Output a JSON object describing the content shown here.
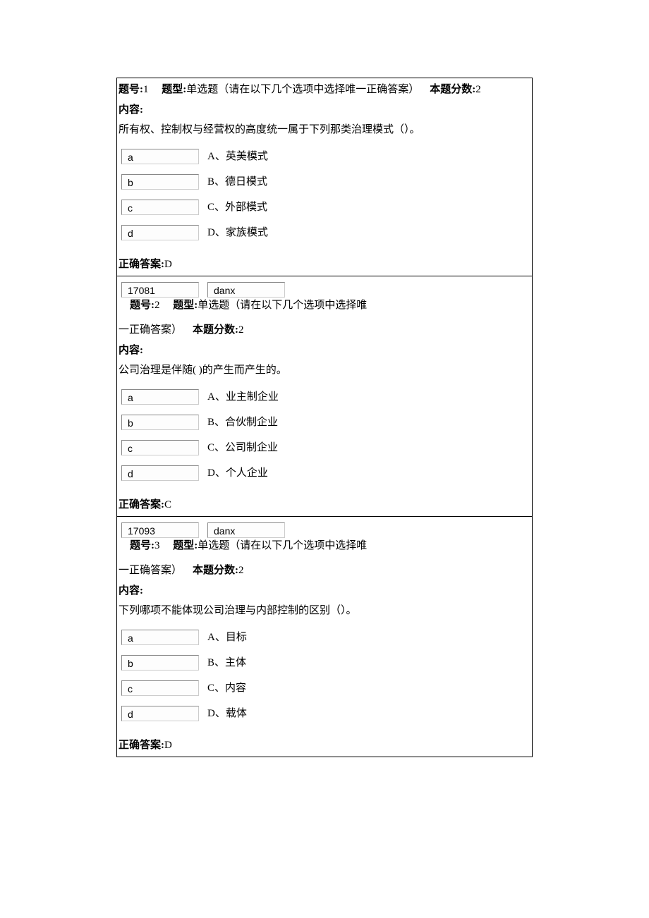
{
  "labels": {
    "q_number": "题号:",
    "q_type_label": "题型:",
    "q_type_suffix": "单选题（请在以下几个选项中选择唯一正确答案）",
    "q_type_suffix_wrap1": "单选题（请在以下几个选项中选择唯",
    "q_type_suffix_wrap2": "一正确答案）",
    "score_label": "本题分数:",
    "content_label": "内容:",
    "answer_label": "正确答案:"
  },
  "questions": [
    {
      "number": "1",
      "score": "2",
      "meta_inputs": [],
      "content": "所有权、控制权与经营权的高度统一属于下列那类治理模式（）。",
      "options": [
        {
          "value": "a",
          "label": "A、英美模式"
        },
        {
          "value": "b",
          "label": "B、德日模式"
        },
        {
          "value": "c",
          "label": "C、外部模式"
        },
        {
          "value": "d",
          "label": "D、家族模式"
        }
      ],
      "answer": "D"
    },
    {
      "number": "2",
      "score": "2",
      "meta_inputs": [
        "17081",
        "danx"
      ],
      "content": "公司治理是伴随( )的产生而产生的。",
      "options": [
        {
          "value": "a",
          "label": "A、业主制企业"
        },
        {
          "value": "b",
          "label": "B、合伙制企业"
        },
        {
          "value": "c",
          "label": "C、公司制企业"
        },
        {
          "value": "d",
          "label": "D、个人企业"
        }
      ],
      "answer": "C"
    },
    {
      "number": "3",
      "score": "2",
      "meta_inputs": [
        "17093",
        "danx"
      ],
      "content": "下列哪项不能体现公司治理与内部控制的区别（）。",
      "options": [
        {
          "value": "a",
          "label": "A、目标"
        },
        {
          "value": "b",
          "label": "B、主体"
        },
        {
          "value": "c",
          "label": "C、内容"
        },
        {
          "value": "d",
          "label": "D、载体"
        }
      ],
      "answer": "D"
    }
  ]
}
